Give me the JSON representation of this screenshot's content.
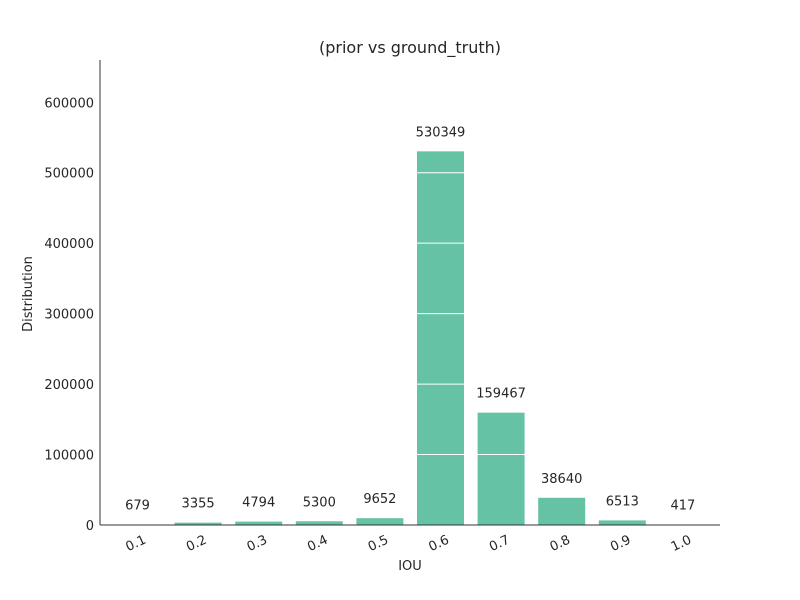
{
  "chart_data": {
    "type": "bar",
    "title": "(prior vs ground_truth)",
    "xlabel": "IOU",
    "ylabel": "Distribution",
    "categories": [
      "0.1",
      "0.2",
      "0.3",
      "0.4",
      "0.5",
      "0.6",
      "0.7",
      "0.8",
      "0.9",
      "1.0"
    ],
    "values": [
      679,
      3355,
      4794,
      5300,
      9652,
      530349,
      159467,
      38640,
      6513,
      417
    ],
    "data_labels": [
      "679",
      "3355",
      "4794",
      "5300",
      "9652",
      "530349",
      "159467",
      "38640",
      "6513",
      "417"
    ],
    "yticks": [
      0,
      100000,
      200000,
      300000,
      400000,
      500000,
      600000
    ],
    "ytick_labels": [
      "0",
      "100000",
      "200000",
      "300000",
      "400000",
      "500000",
      "600000"
    ],
    "ylim": [
      0,
      660000
    ],
    "grid": "y (white lines over bars)",
    "bar_color": "#66c2a5",
    "grid_color": "#ffffff",
    "axis_color": "#333333"
  }
}
